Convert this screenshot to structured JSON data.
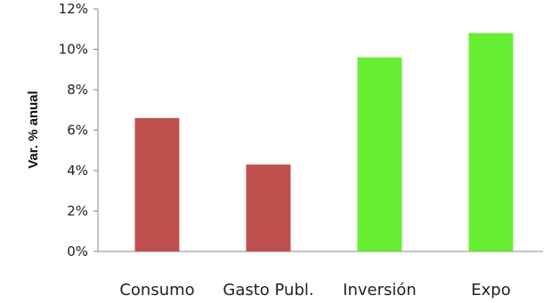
{
  "chart_data": {
    "type": "bar",
    "title": "",
    "xlabel": "",
    "ylabel": "Var. % anual",
    "categories": [
      "Consumo",
      "Gasto Publ.",
      "Inversión",
      "Expo"
    ],
    "values": [
      6.6,
      4.3,
      9.6,
      10.8
    ],
    "bar_colors": [
      "#c0504d",
      "#c0504d",
      "#66ee33",
      "#66ee33"
    ],
    "ylim": [
      0,
      12
    ],
    "yticks": [
      "0%",
      "2%",
      "4%",
      "6%",
      "8%",
      "10%",
      "12%"
    ],
    "grid": false,
    "legend": "none"
  }
}
